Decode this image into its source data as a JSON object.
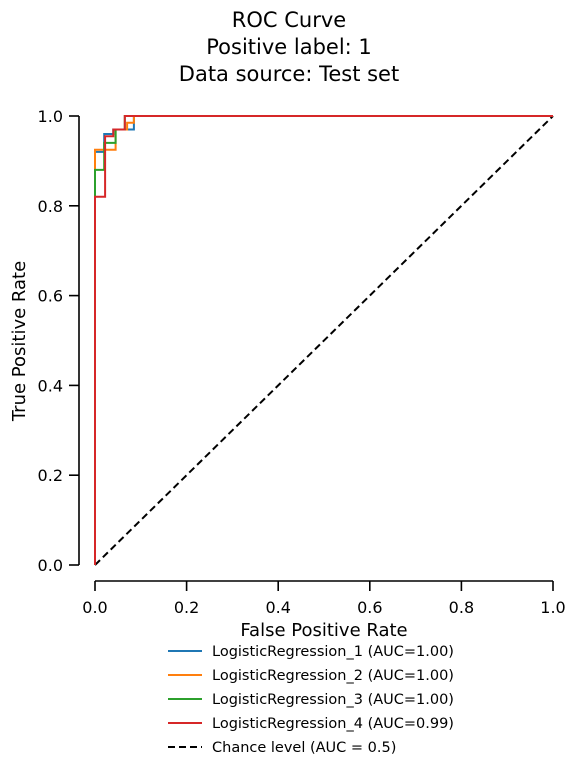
{
  "chart_data": {
    "type": "line",
    "title_lines": [
      "ROC Curve",
      "Positive label: 1",
      "Data source: Test set"
    ],
    "xlabel": "False Positive Rate",
    "ylabel": "True Positive Rate",
    "xlim": [
      0,
      1
    ],
    "ylim": [
      0,
      1
    ],
    "x_ticks": [
      "0.0",
      "0.2",
      "0.4",
      "0.6",
      "0.8",
      "1.0"
    ],
    "y_ticks": [
      "0.0",
      "0.2",
      "0.4",
      "0.6",
      "0.8",
      "1.0"
    ],
    "grid": false,
    "legend_position": "below",
    "series": [
      {
        "name": "LogisticRegression_1 (AUC=1.00)",
        "color": "#1f77b4",
        "points": [
          [
            0,
            0
          ],
          [
            0,
            0.92
          ],
          [
            0.02,
            0.92
          ],
          [
            0.02,
            0.96
          ],
          [
            0.04,
            0.96
          ],
          [
            0.04,
            0.97
          ],
          [
            0.07,
            0.97
          ],
          [
            0.07,
            0.97
          ],
          [
            0.085,
            0.97
          ],
          [
            0.085,
            1.0
          ],
          [
            1.0,
            1.0
          ]
        ]
      },
      {
        "name": "LogisticRegression_2 (AUC=1.00)",
        "color": "#ff7f0e",
        "points": [
          [
            0,
            0
          ],
          [
            0,
            0.925
          ],
          [
            0.045,
            0.925
          ],
          [
            0.045,
            0.97
          ],
          [
            0.07,
            0.97
          ],
          [
            0.07,
            0.985
          ],
          [
            0.085,
            0.985
          ],
          [
            0.085,
            1.0
          ],
          [
            1.0,
            1.0
          ]
        ]
      },
      {
        "name": "LogisticRegression_3 (AUC=1.00)",
        "color": "#2ca02c",
        "points": [
          [
            0,
            0
          ],
          [
            0,
            0.88
          ],
          [
            0.02,
            0.88
          ],
          [
            0.02,
            0.94
          ],
          [
            0.045,
            0.94
          ],
          [
            0.045,
            0.97
          ],
          [
            0.065,
            0.97
          ],
          [
            0.065,
            1.0
          ],
          [
            1.0,
            1.0
          ]
        ]
      },
      {
        "name": "LogisticRegression_4 (AUC=0.99)",
        "color": "#d62728",
        "points": [
          [
            0,
            0
          ],
          [
            0,
            0.82
          ],
          [
            0.022,
            0.82
          ],
          [
            0.022,
            0.955
          ],
          [
            0.04,
            0.955
          ],
          [
            0.04,
            0.97
          ],
          [
            0.065,
            0.97
          ],
          [
            0.065,
            1.0
          ],
          [
            1.0,
            1.0
          ]
        ]
      }
    ],
    "chance_line": {
      "name": "Chance level (AUC = 0.5)",
      "color": "#000000",
      "points": [
        [
          0,
          0
        ],
        [
          1,
          1
        ]
      ]
    }
  }
}
